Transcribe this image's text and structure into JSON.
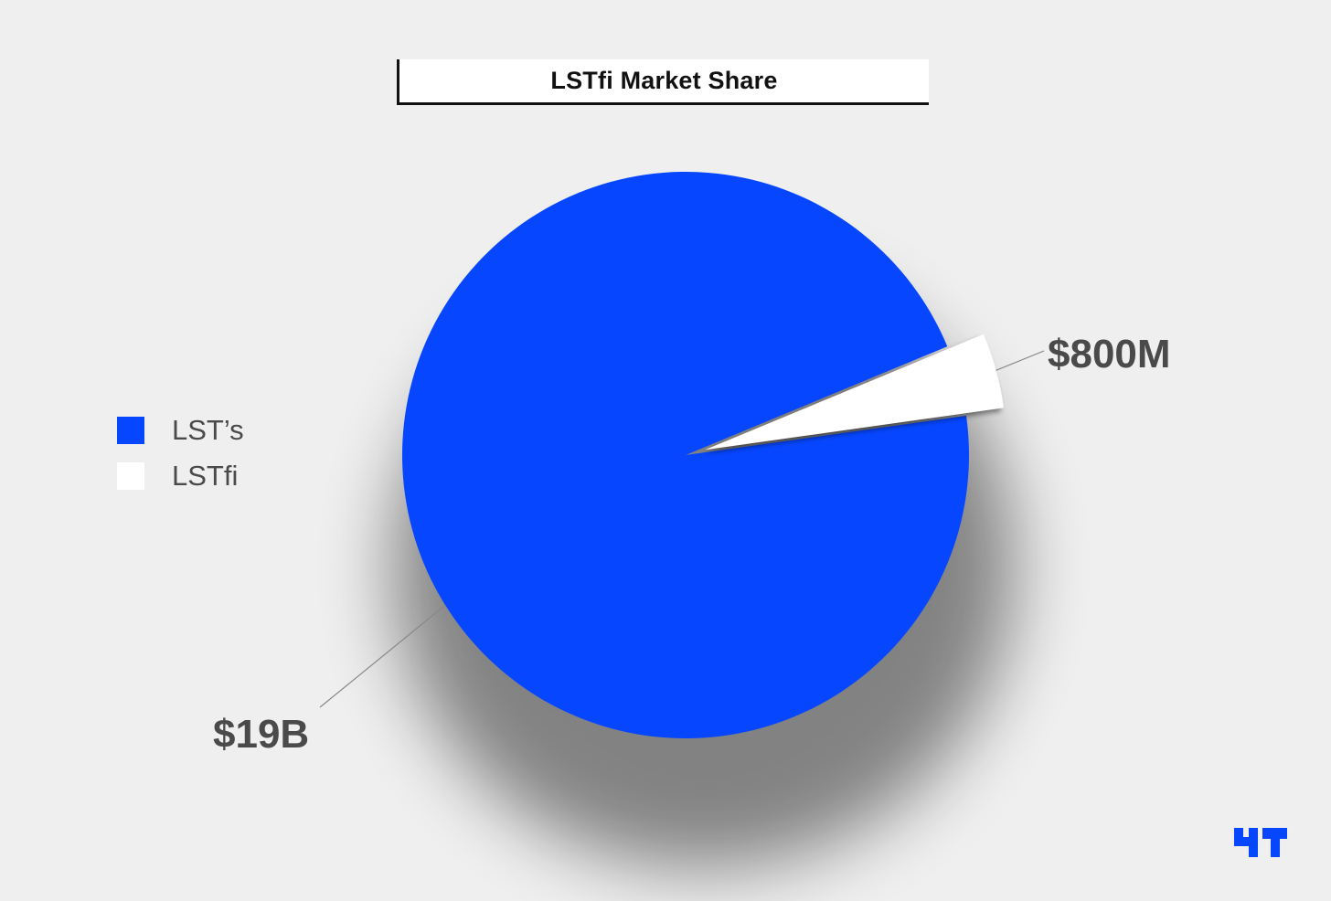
{
  "chart_data": {
    "type": "pie",
    "title": "LSTfi Market Share",
    "slices": [
      {
        "label": "LST’s",
        "value": 19000000000,
        "display": "$19B",
        "color": "#0646ff"
      },
      {
        "label": "LSTfi",
        "value": 800000000,
        "display": "$800M",
        "color": "#ffffff",
        "exploded": true
      }
    ],
    "legend_position": "left"
  },
  "colors": {
    "background": "#efefef",
    "primary": "#0646ff",
    "label_text": "#4a4a4a"
  },
  "logo": {
    "icon": "brand-logo-icon"
  }
}
